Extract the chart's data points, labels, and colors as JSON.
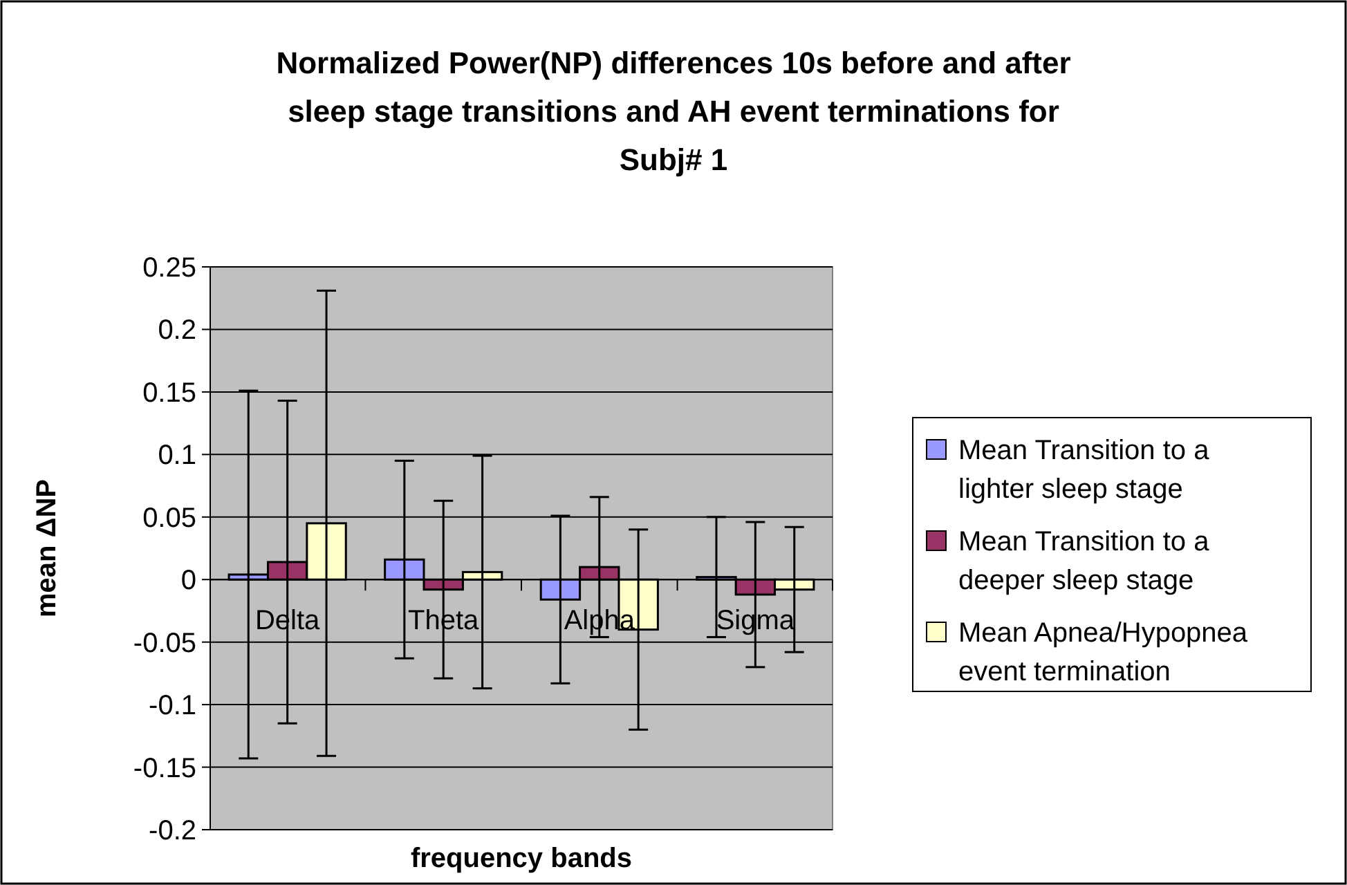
{
  "chart_data": {
    "type": "bar",
    "title": "Normalized Power(NP) differences 10s before and after sleep stage transitions and AH event terminations for Subj# 1",
    "xlabel": "frequency bands",
    "ylabel": "mean ΔNP",
    "categories": [
      "Delta",
      "Theta",
      "Alpha",
      "Sigma"
    ],
    "series": [
      {
        "name": "Mean Transition to a lighter sleep stage",
        "color": "#9999ff",
        "values": [
          0.004,
          0.016,
          -0.016,
          0.002
        ],
        "errors": [
          0.147,
          0.079,
          0.067,
          0.048
        ]
      },
      {
        "name": "Mean Transition to a deeper sleep stage",
        "color": "#993366",
        "values": [
          0.014,
          -0.008,
          0.01,
          -0.012
        ],
        "errors": [
          0.129,
          0.071,
          0.056,
          0.058
        ]
      },
      {
        "name": "Mean Apnea/Hypopnea event termination",
        "color": "#ffffcc",
        "values": [
          0.045,
          0.006,
          -0.04,
          -0.008
        ],
        "errors": [
          0.186,
          0.093,
          0.08,
          0.05
        ]
      }
    ],
    "ylim": [
      -0.2,
      0.25
    ],
    "yticks": [
      -0.2,
      -0.15,
      -0.1,
      -0.05,
      0,
      0.05,
      0.1,
      0.15,
      0.2,
      0.25
    ],
    "grid": "y",
    "legend": "right"
  }
}
